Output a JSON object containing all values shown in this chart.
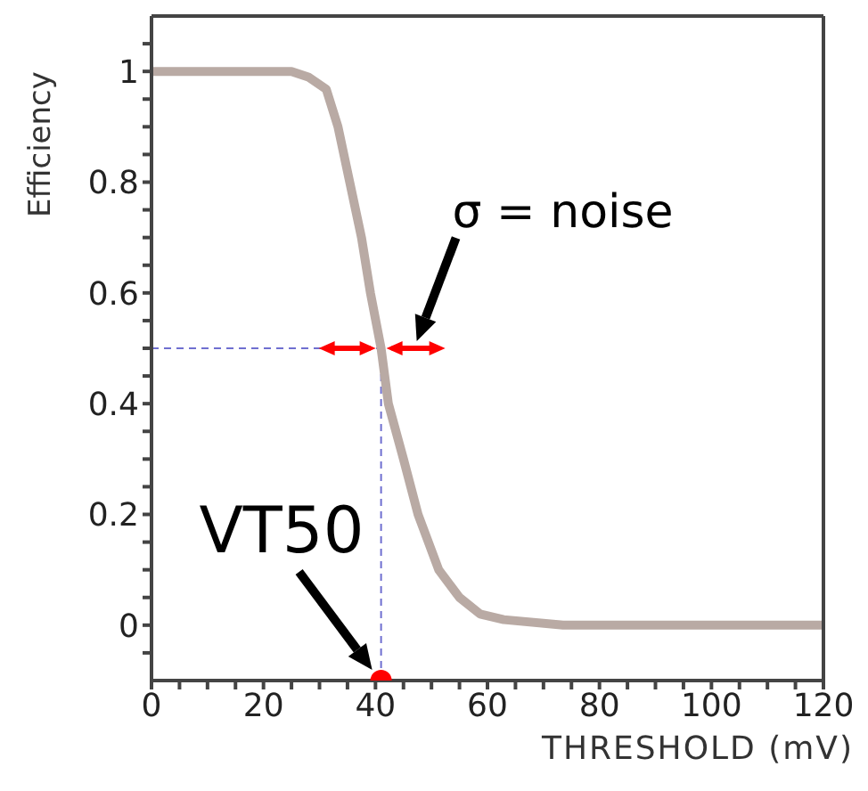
{
  "chart_data": {
    "type": "line",
    "xlabel": "THRESHOLD (mV)",
    "ylabel": "Efficiency",
    "series": [
      {
        "color": "#b9aaa4",
        "marker": "none",
        "x": [
          0,
          25,
          28,
          31.2,
          33.3,
          35.4,
          37.5,
          39.1,
          41,
          42.3,
          45,
          47.6,
          51.3,
          55,
          58.7,
          62.9,
          73.5,
          120
        ],
        "values": [
          1,
          1,
          0.99,
          0.968,
          0.9,
          0.8,
          0.7,
          0.6,
          0.5,
          0.4,
          0.3,
          0.2,
          0.1,
          0.05,
          0.02,
          0.01,
          0,
          0
        ]
      },
      {
        "type": "scatter",
        "color": "#ff0000",
        "marker": "circle",
        "x": [
          41
        ],
        "values": [
          -0.1
        ]
      }
    ],
    "xlim": [
      0,
      120
    ],
    "xticks": [
      0,
      {
        "value": 5,
        "label": null
      },
      {
        "value": 10,
        "label": null
      },
      {
        "value": 15,
        "label": null
      },
      20,
      {
        "value": 25,
        "label": null
      },
      {
        "value": 30,
        "label": null
      },
      {
        "value": 35,
        "label": null
      },
      40,
      {
        "value": 45,
        "label": null
      },
      {
        "value": 50,
        "label": null
      },
      {
        "value": 55,
        "label": null
      },
      60,
      {
        "value": 65,
        "label": null
      },
      {
        "value": 70,
        "label": null
      },
      {
        "value": 75,
        "label": null
      },
      80,
      {
        "value": 85,
        "label": null
      },
      {
        "value": 90,
        "label": null
      },
      {
        "value": 95,
        "label": null
      },
      100,
      {
        "value": 105,
        "label": null
      },
      {
        "value": 110,
        "label": null
      },
      {
        "value": 115,
        "label": null
      },
      120
    ],
    "ylim": [
      -0.1,
      1.1
    ],
    "yticks": [
      {
        "value": -0.05,
        "label": null
      },
      0,
      {
        "value": 0.05,
        "label": null
      },
      {
        "value": 0.1,
        "label": null
      },
      {
        "value": 0.15,
        "label": null
      },
      0.2,
      {
        "value": 0.25,
        "label": null
      },
      {
        "value": 0.3,
        "label": null
      },
      {
        "value": 0.35,
        "label": null
      },
      0.4,
      {
        "value": 0.45,
        "label": null
      },
      {
        "value": 0.5,
        "label": null
      },
      {
        "value": 0.55,
        "label": null
      },
      0.6,
      {
        "value": 0.65,
        "label": null
      },
      {
        "value": 0.7,
        "label": null
      },
      {
        "value": 0.75,
        "label": null
      },
      0.8,
      {
        "value": 0.85,
        "label": null
      },
      {
        "value": 0.9,
        "label": null
      },
      {
        "value": 0.95,
        "label": null
      },
      1,
      {
        "value": 1.05,
        "label": null
      }
    ],
    "ref_lines": [
      {
        "axis": "y",
        "value": 0.5,
        "color": "#6f6fd0",
        "line_style": "dashed"
      },
      {
        "axis": "x",
        "value": 41,
        "color": "#6f6fd0",
        "line_style": "dashed"
      }
    ],
    "annotations": [
      "σ = noise",
      {
        "text": "VT50",
        "x": 41,
        "y": -0.1
      }
    ]
  }
}
